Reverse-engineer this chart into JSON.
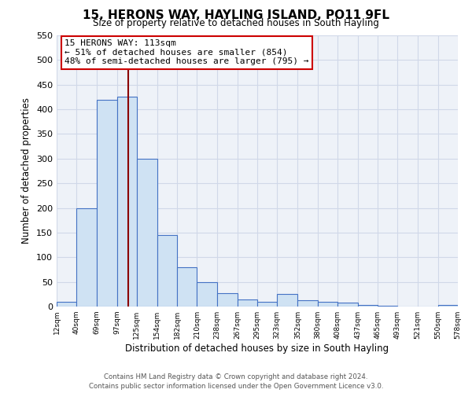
{
  "title": "15, HERONS WAY, HAYLING ISLAND, PO11 9FL",
  "subtitle": "Size of property relative to detached houses in South Hayling",
  "xlabel": "Distribution of detached houses by size in South Hayling",
  "ylabel": "Number of detached properties",
  "bin_edges": [
    12,
    40,
    69,
    97,
    125,
    154,
    182,
    210,
    238,
    267,
    295,
    323,
    352,
    380,
    408,
    437,
    465,
    493,
    521,
    550,
    578
  ],
  "counts": [
    10,
    200,
    420,
    425,
    300,
    145,
    80,
    50,
    27,
    15,
    10,
    25,
    13,
    10,
    8,
    3,
    1,
    0,
    0,
    3
  ],
  "ylim": [
    0,
    550
  ],
  "yticks": [
    0,
    50,
    100,
    150,
    200,
    250,
    300,
    350,
    400,
    450,
    500,
    550
  ],
  "property_size": 113,
  "bar_fill": "#cfe2f3",
  "bar_edge": "#4472c4",
  "vline_color": "#8b0000",
  "annotation_text": "15 HERONS WAY: 113sqm\n← 51% of detached houses are smaller (854)\n48% of semi-detached houses are larger (795) →",
  "annotation_box_edge": "#cc0000",
  "footer_line1": "Contains HM Land Registry data © Crown copyright and database right 2024.",
  "footer_line2": "Contains public sector information licensed under the Open Government Licence v3.0.",
  "grid_color": "#d0d8e8",
  "background_color": "#eef2f8"
}
